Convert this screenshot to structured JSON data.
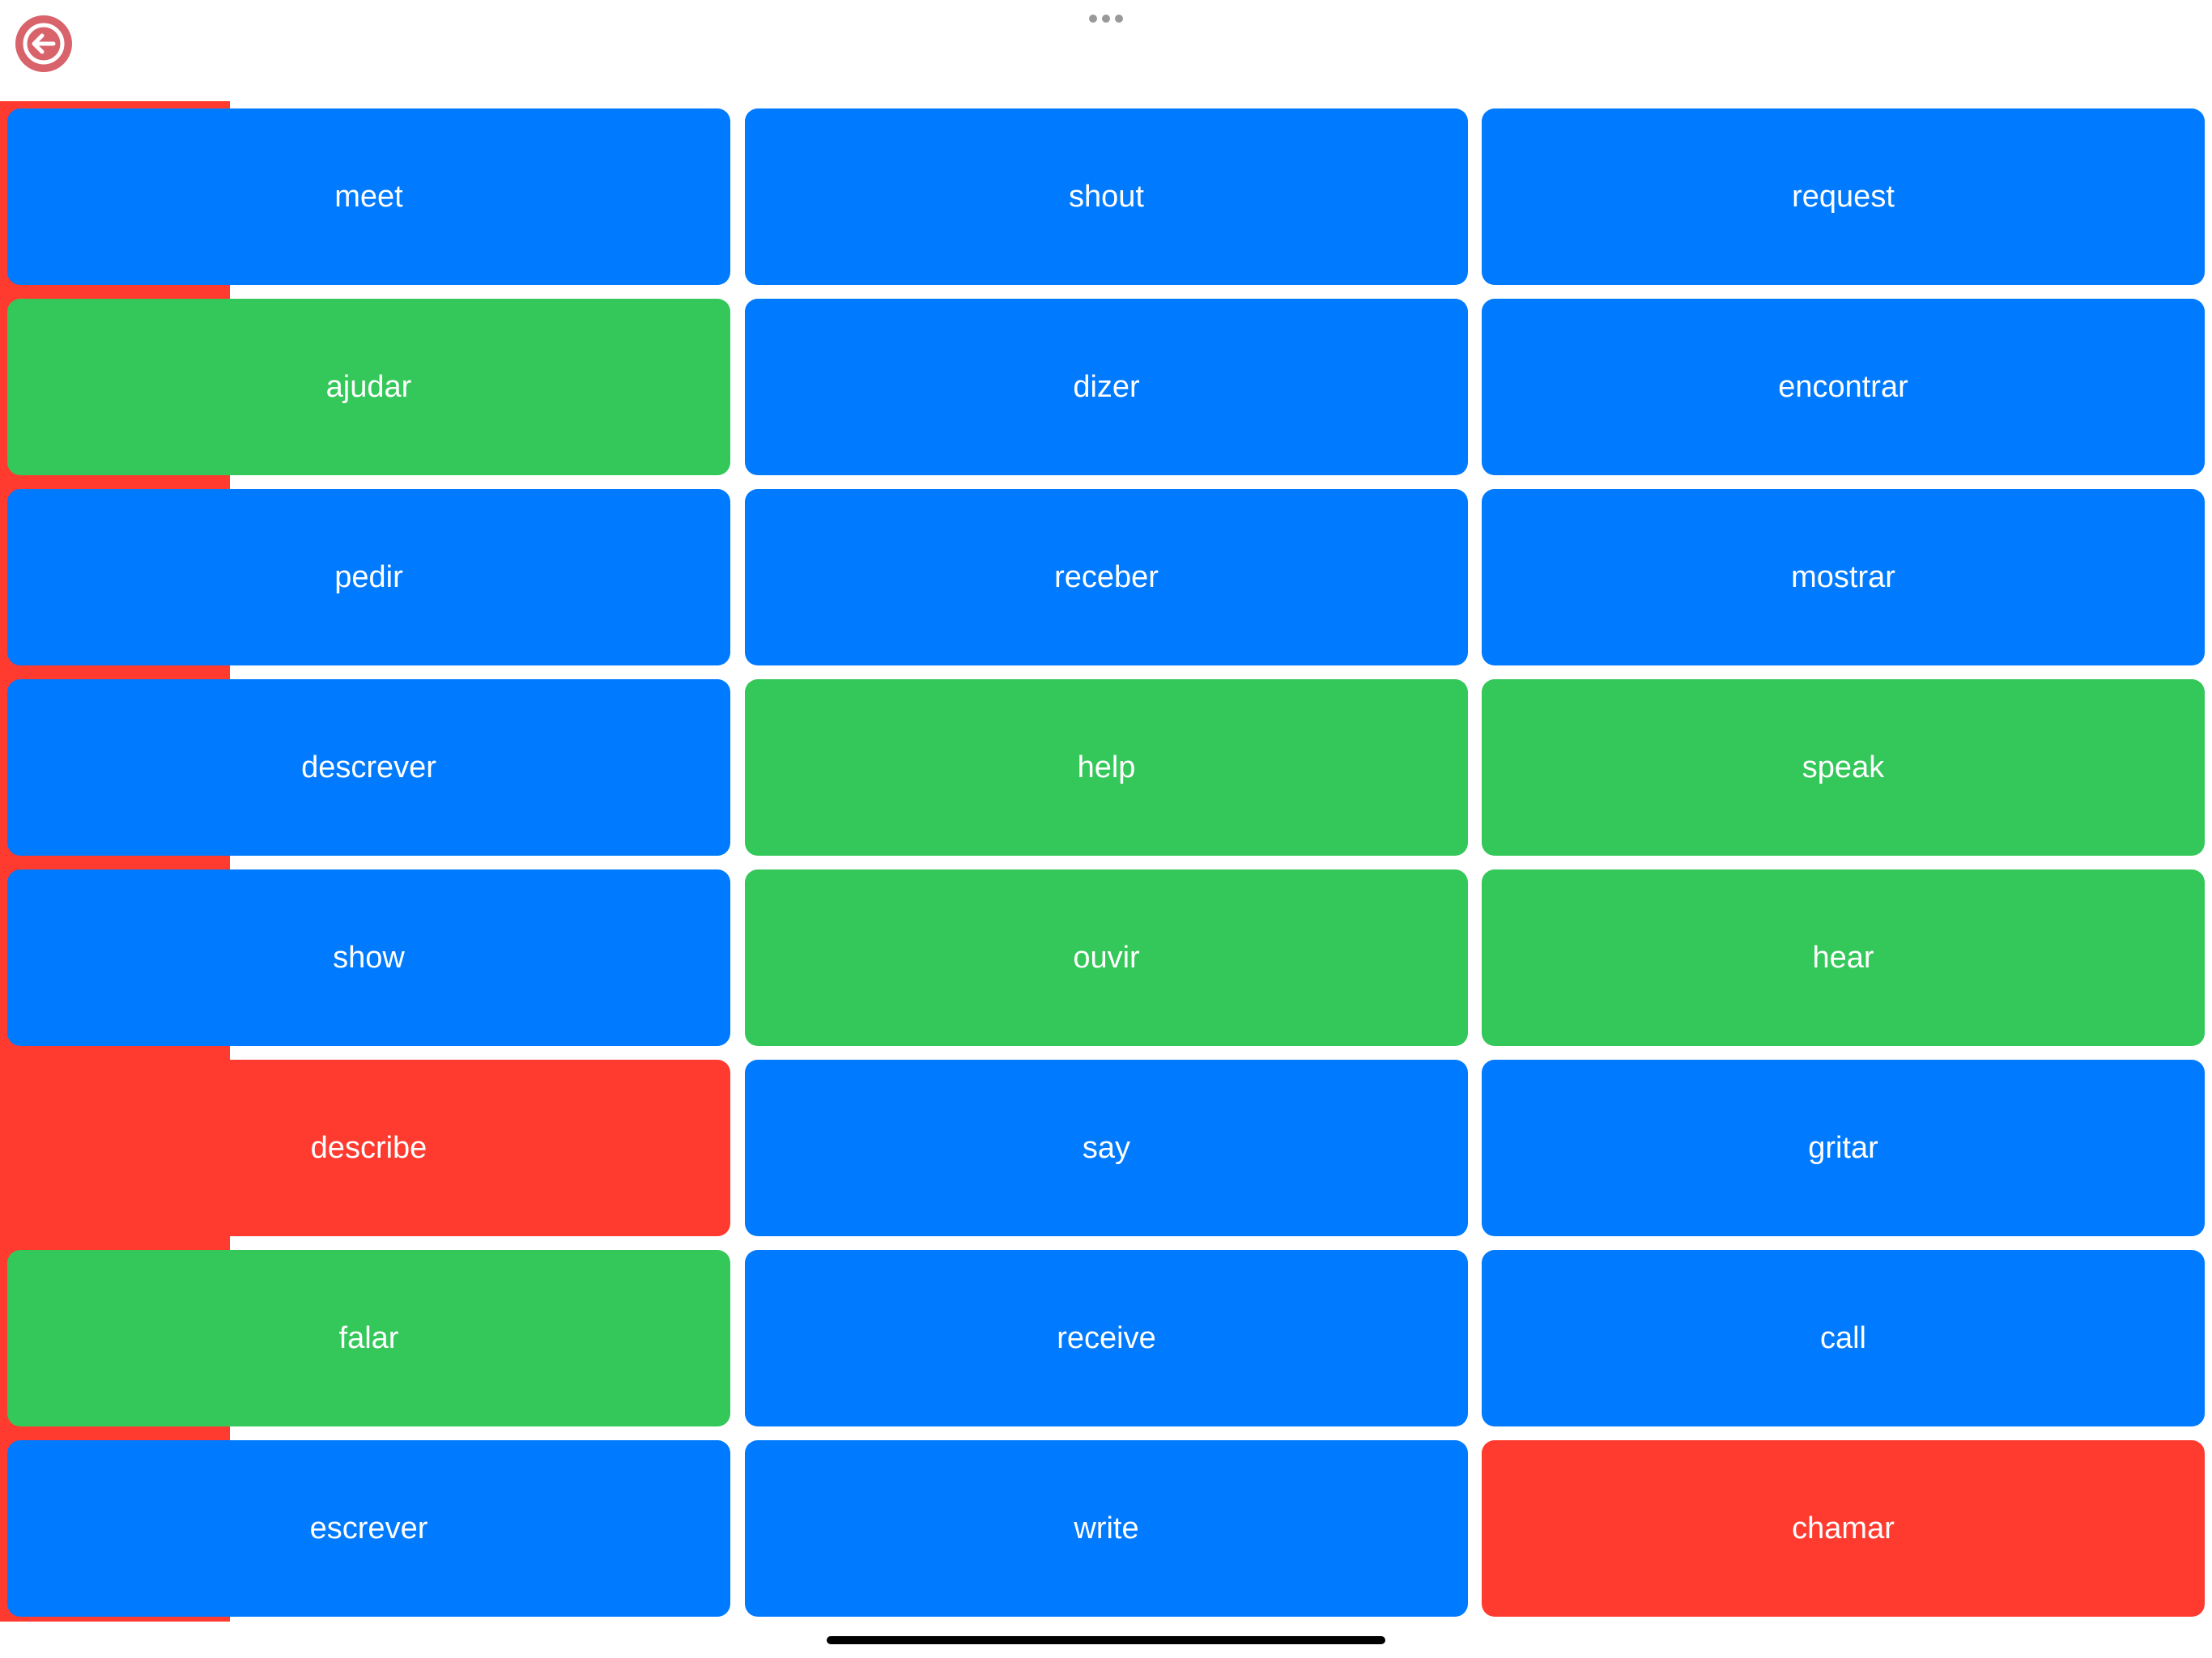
{
  "tiles": [
    {
      "label": "meet",
      "color": "#007aff"
    },
    {
      "label": "shout",
      "color": "#007aff"
    },
    {
      "label": "request",
      "color": "#007aff"
    },
    {
      "label": "ajudar",
      "color": "#34c759"
    },
    {
      "label": "dizer",
      "color": "#007aff"
    },
    {
      "label": "encontrar",
      "color": "#007aff"
    },
    {
      "label": "pedir",
      "color": "#007aff"
    },
    {
      "label": "receber",
      "color": "#007aff"
    },
    {
      "label": "mostrar",
      "color": "#007aff"
    },
    {
      "label": "descrever",
      "color": "#007aff"
    },
    {
      "label": "help",
      "color": "#34c759"
    },
    {
      "label": "speak",
      "color": "#34c759"
    },
    {
      "label": "show",
      "color": "#007aff"
    },
    {
      "label": "ouvir",
      "color": "#34c759"
    },
    {
      "label": "hear",
      "color": "#34c759"
    },
    {
      "label": "describe",
      "color": "#ff3b30"
    },
    {
      "label": "say",
      "color": "#007aff"
    },
    {
      "label": "gritar",
      "color": "#007aff"
    },
    {
      "label": "falar",
      "color": "#34c759"
    },
    {
      "label": "receive",
      "color": "#007aff"
    },
    {
      "label": "call",
      "color": "#007aff"
    },
    {
      "label": "escrever",
      "color": "#007aff"
    },
    {
      "label": "write",
      "color": "#007aff"
    },
    {
      "label": "chamar",
      "color": "#ff3b30"
    }
  ]
}
